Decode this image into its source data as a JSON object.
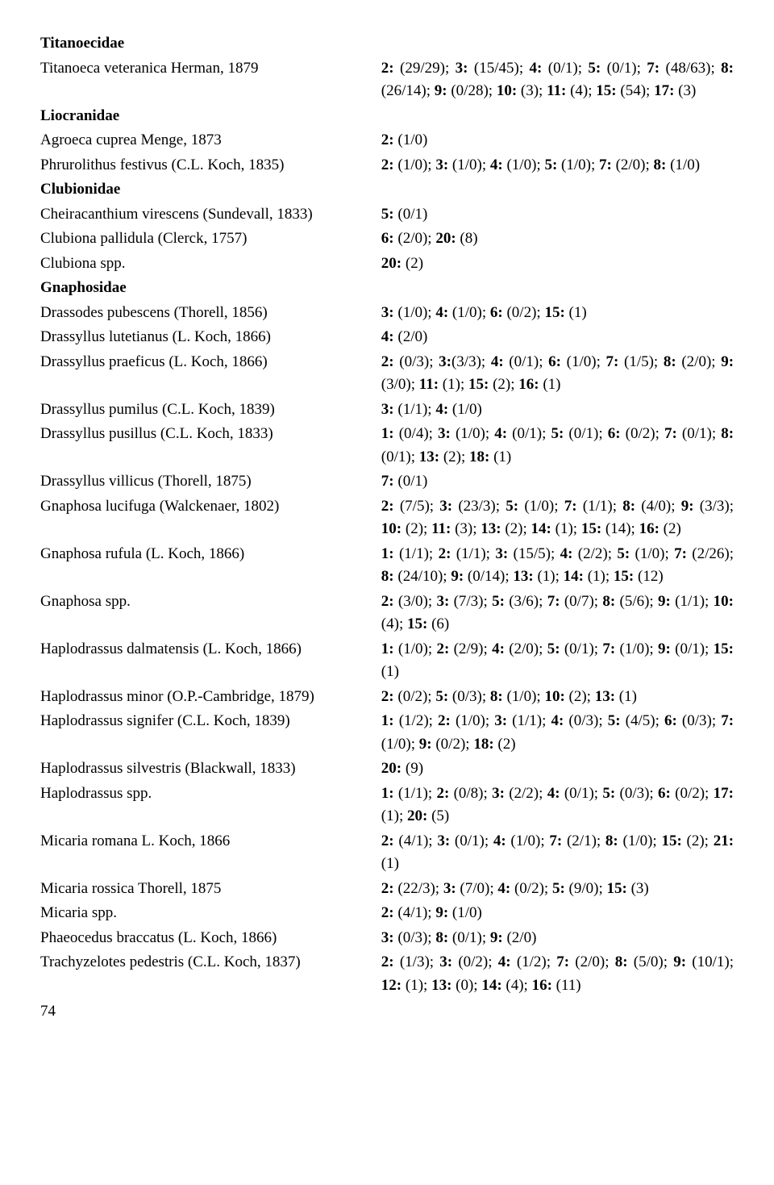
{
  "page_number": "74",
  "rows": [
    {
      "left": "Titanoecidae",
      "left_bold": true,
      "right": ""
    },
    {
      "left": "Titanoeca veteranica Herman, 1879",
      "right": "<b>2:</b> (29/29); <b>3:</b> (15/45); <b>4:</b> (0/1); <b>5:</b> (0/1); <b>7:</b> (48/63); <b>8:</b> (26/14); <b>9:</b> (0/28); <b>10:</b> (3); <b>11:</b> (4); <b>15:</b> (54); <b>17:</b> (3)"
    },
    {
      "left": "Liocranidae",
      "left_bold": true,
      "right": ""
    },
    {
      "left": "Agroeca cuprea Menge, 1873",
      "right": "<b>2:</b> (1/0)"
    },
    {
      "left": "Phrurolithus festivus (C.L. Koch, 1835)",
      "right": "<b>2:</b> (1/0); <b>3:</b> (1/0); <b>4:</b> (1/0); <b>5:</b> (1/0); <b>7:</b> (2/0); <b>8:</b> (1/0)"
    },
    {
      "left": "Clubionidae",
      "left_bold": true,
      "right": ""
    },
    {
      "left": "Cheiracanthium virescens (Sundevall, 1833)",
      "right": "<b>5:</b> (0/1)"
    },
    {
      "left": "Clubiona pallidula (Clerck, 1757)",
      "right": "<b>6:</b> (2/0); <b>20:</b> (8)"
    },
    {
      "left": "Clubiona spp.",
      "right": "<b>20:</b> (2)"
    },
    {
      "left": "Gnaphosidae",
      "left_bold": true,
      "right": ""
    },
    {
      "left": "Drassodes pubescens (Thorell, 1856)",
      "right": "<b>3:</b> (1/0); <b>4:</b> (1/0); <b>6:</b> (0/2); <b>15:</b> (1)"
    },
    {
      "left": "Drassyllus lutetianus (L. Koch, 1866)",
      "right": "<b>4:</b> (2/0)"
    },
    {
      "left": "Drassyllus praeficus (L. Koch, 1866)",
      "right": "<b>2:</b> (0/3); <b>3:</b>(3/3); <b>4:</b> (0/1); <b>6:</b> (1/0); <b>7:</b> (1/5); <b>8:</b> (2/0); <b>9:</b> (3/0); <b>11:</b> (1); <b>15:</b> (2); <b>16:</b> (1)"
    },
    {
      "left": "Drassyllus pumilus (C.L. Koch, 1839)",
      "right": "<b>3:</b> (1/1); <b>4:</b> (1/0)"
    },
    {
      "left": "Drassyllus pusillus (C.L. Koch, 1833)",
      "right": "<b>1:</b> (0/4); <b>3:</b> (1/0); <b>4:</b> (0/1); <b>5:</b> (0/1); <b>6:</b> (0/2); <b>7:</b> (0/1); <b>8:</b> (0/1); <b>13:</b> (2); <b>18:</b> (1)"
    },
    {
      "left": "Drassyllus villicus (Thorell, 1875)",
      "right": "<b>7:</b> (0/1)"
    },
    {
      "left": "Gnaphosa lucifuga (Walckenaer, 1802)",
      "right": "<b>2:</b> (7/5); <b>3:</b> (23/3); <b>5:</b> (1/0); <b>7:</b> (1/1); <b>8:</b> (4/0); <b>9:</b> (3/3); <b>10:</b> (2); <b>11:</b> (3); <b>13:</b> (2); <b>14:</b> (1); <b>15:</b> (14); <b>16:</b> (2)"
    },
    {
      "left": "Gnaphosa rufula (L. Koch, 1866)",
      "right": "<b>1:</b> (1/1); <b>2:</b> (1/1); <b>3:</b> (15/5); <b>4:</b> (2/2); <b>5:</b> (1/0); <b>7:</b> (2/26); <b>8:</b> (24/10); <b>9:</b> (0/14); <b>13:</b> (1); <b>14:</b> (1); <b>15:</b> (12)"
    },
    {
      "left": "Gnaphosa spp.",
      "right": "<b>2:</b> (3/0); <b>3:</b> (7/3); <b>5:</b> (3/6); <b>7:</b> (0/7); <b>8:</b> (5/6); <b>9:</b> (1/1); <b>10:</b> (4); <b>15:</b> (6)"
    },
    {
      "left": "Haplodrassus dalmatensis (L. Koch, 1866)",
      "right": "<b>1:</b> (1/0); <b>2:</b> (2/9); <b>4:</b> (2/0); <b>5:</b> (0/1); <b>7:</b> (1/0); <b>9:</b> (0/1); <b>15:</b> (1)"
    },
    {
      "left": "Haplodrassus minor (O.P.-Cambridge, 1879)",
      "right": "<b>2:</b> (0/2); <b>5:</b> (0/3); <b>8:</b> (1/0); <b>10:</b> (2); <b>13:</b> (1)"
    },
    {
      "left": "Haplodrassus signifer (C.L. Koch, 1839)",
      "right": "<b>1:</b> (1/2); <b>2:</b> (1/0); <b>3:</b> (1/1); <b>4:</b> (0/3); <b>5:</b> (4/5); <b>6:</b> (0/3); <b>7:</b> (1/0); <b>9:</b> (0/2); <b>18:</b> (2)"
    },
    {
      "left": "Haplodrassus silvestris (Blackwall, 1833)",
      "right": "<b>20:</b> (9)"
    },
    {
      "left": "Haplodrassus spp.",
      "right": "<b>1:</b> (1/1); <b>2:</b> (0/8); <b>3:</b> (2/2); <b>4:</b> (0/1); <b>5:</b> (0/3); <b>6:</b> (0/2); <b>17:</b> (1); <b>20:</b> (5)"
    },
    {
      "left": "Micaria romana L. Koch, 1866",
      "right": "<b>2:</b> (4/1); <b>3:</b> (0/1); <b>4:</b> (1/0); <b>7:</b> (2/1); <b>8:</b> (1/0); <b>15:</b> (2); <b>21:</b> (1)"
    },
    {
      "left": "Micaria rossica Thorell, 1875",
      "right": "<b>2:</b> (22/3); <b>3:</b> (7/0); <b>4:</b> (0/2); <b>5:</b> (9/0); <b>15:</b> (3)"
    },
    {
      "left": "Micaria spp.",
      "right": "<b>2:</b> (4/1); <b>9:</b> (1/0)"
    },
    {
      "left": "Phaeocedus braccatus (L. Koch, 1866)",
      "right": "<b>3:</b> (0/3); <b>8:</b> (0/1); <b>9:</b> (2/0)"
    },
    {
      "left": "Trachyzelotes pedestris (C.L. Koch, 1837)",
      "right": "<b>2:</b> (1/3); <b>3:</b> (0/2); <b>4:</b> (1/2); <b>7:</b> (2/0); <b>8:</b> (5/0); <b>9:</b> (10/1); <b>12:</b> (1); <b>13:</b> (0); <b>14:</b> (4); <b>16:</b> (11)"
    }
  ]
}
